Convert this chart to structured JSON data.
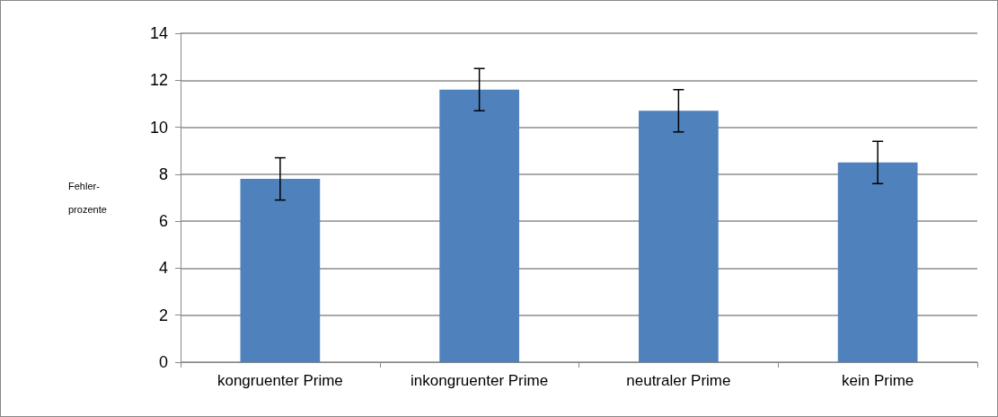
{
  "chart_data": {
    "type": "bar",
    "ylabel": "Fehler-\nprozente",
    "categories": [
      "kongruenter Prime",
      "inkongruenter Prime",
      "neutraler Prime",
      "kein Prime"
    ],
    "series": [
      {
        "color": "#4f81bd",
        "values": [
          7.8,
          11.6,
          10.7,
          8.5
        ],
        "errors": [
          0.9,
          0.9,
          0.9,
          0.9
        ]
      }
    ],
    "ylim": [
      0,
      14
    ],
    "yticks": [
      0,
      2,
      4,
      6,
      8,
      10,
      12,
      14
    ],
    "grid": "y"
  }
}
